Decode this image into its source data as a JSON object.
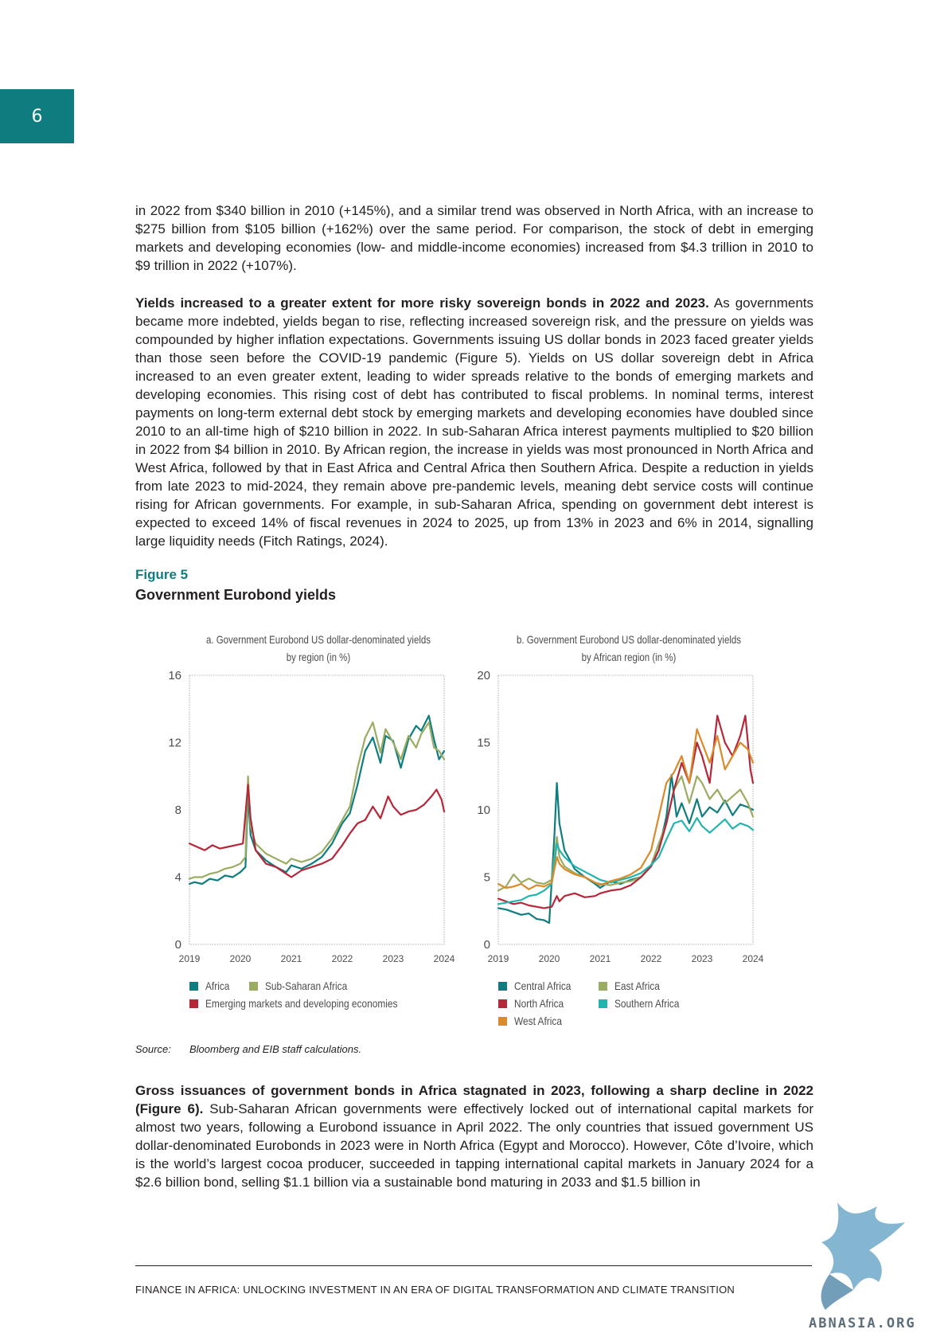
{
  "page": {
    "number": "6",
    "footer": "FINANCE IN AFRICA: UNLOCKING INVESTMENT IN AN ERA OF DIGITAL TRANSFORMATION AND CLIMATE TRANSITION",
    "watermark": "ABNASIA.ORG"
  },
  "text": {
    "para1": "in 2022 from $340 billion in 2010 (+145%), and a similar trend was observed in North Africa, with an increase to $275 billion from $105 billion (+162%) over the same period. For comparison, the stock of debt in emerging markets and developing economies (low- and middle-income economies) increased from $4.3 trillion in 2010 to $9 trillion in 2022 (+107%).",
    "para2_bold": "Yields increased to a greater extent for more risky sovereign bonds in 2022 and 2023.",
    "para2": " As governments became more indebted, yields began to rise, reflecting increased sovereign risk, and the pressure on yields was compounded by higher inflation expectations. Governments issuing US dollar bonds in 2023 faced greater yields than those seen before the COVID-19 pandemic (Figure 5). Yields on US dollar sovereign debt in Africa increased to an even greater extent, leading to wider spreads relative to the bonds of emerging markets and developing economies. This rising cost of debt has contributed to fiscal problems. In nominal terms, interest payments on long-term external debt stock by emerging markets and developing economies have doubled since 2010 to an all-time high of $210 billion in 2022. In sub-Saharan Africa interest payments multiplied to $20 billion in 2022 from $4 billion in 2010. By African region, the increase in yields was most pronounced in North Africa and West Africa, followed by that in East Africa and Central Africa then Southern Africa. Despite a reduction in yields from late 2023 to mid-2024, they remain above pre-pandemic levels, meaning debt service costs will continue rising for African governments. For example, in sub-Saharan Africa, spending on government debt interest is expected to exceed 14% of fiscal revenues in 2024 to 2025, up from 13% in 2023 and 6% in 2014, signalling large liquidity needs (Fitch Ratings, 2024).",
    "para3_bold": "Gross issuances of government bonds in Africa stagnated in 2023, following a sharp decline in 2022 (Figure 6).",
    "para3": " Sub-Saharan African governments were effectively locked out of international capital markets for almost two years, following a Eurobond issuance in April 2022. The only countries that issued government US dollar-denominated Eurobonds in 2023 were in North Africa (Egypt and Morocco). However, Côte d’Ivoire, which is the world’s largest cocoa producer, succeeded in tapping international capital markets in January 2024 for a $2.6 billion bond, selling $1.1 billion via a sustainable bond maturing in 2033 and $1.5 billion in"
  },
  "figure": {
    "label": "Figure 5",
    "title": "Government Eurobond yields",
    "source_label": "Source:",
    "source_text": "Bloomberg and EIB staff calculations."
  },
  "chart_data": [
    {
      "type": "line",
      "title": "a. Government Eurobond US dollar-denominated yields by region (in %)",
      "title_line1": "a. Government Eurobond US dollar-denominated yields",
      "title_line2": "by region (in %)",
      "x_ticks": [
        "2019",
        "2020",
        "2021",
        "2022",
        "2023",
        "2024"
      ],
      "y_ticks": [
        "0",
        "4",
        "8",
        "12",
        "16"
      ],
      "xlim": [
        2019,
        2024
      ],
      "ylim": [
        0,
        16
      ],
      "grid": false,
      "legend_position": "bottom",
      "series": [
        {
          "name": "Africa",
          "color": "#0f7d80",
          "x": [
            2019.0,
            2019.1,
            2019.25,
            2019.4,
            2019.55,
            2019.7,
            2019.85,
            2020.0,
            2020.1,
            2020.15,
            2020.2,
            2020.3,
            2020.5,
            2020.7,
            2020.9,
            2021.0,
            2021.2,
            2021.4,
            2021.6,
            2021.8,
            2022.0,
            2022.15,
            2022.3,
            2022.45,
            2022.6,
            2022.75,
            2022.85,
            2023.0,
            2023.15,
            2023.3,
            2023.45,
            2023.55,
            2023.7,
            2023.8,
            2023.9,
            2024.0
          ],
          "y": [
            3.6,
            3.7,
            3.6,
            3.9,
            3.8,
            4.1,
            4.0,
            4.3,
            4.6,
            9.0,
            6.5,
            5.6,
            5.0,
            4.6,
            4.3,
            4.7,
            4.5,
            4.8,
            5.2,
            6.0,
            7.2,
            7.8,
            9.5,
            11.5,
            12.3,
            10.8,
            12.4,
            12.1,
            10.5,
            12.2,
            13.0,
            12.7,
            13.6,
            12.2,
            11.0,
            11.5
          ]
        },
        {
          "name": "Sub-Saharan Africa",
          "color": "#9aac62",
          "x": [
            2019.0,
            2019.1,
            2019.25,
            2019.4,
            2019.55,
            2019.7,
            2019.85,
            2020.0,
            2020.1,
            2020.15,
            2020.2,
            2020.3,
            2020.5,
            2020.7,
            2020.9,
            2021.0,
            2021.2,
            2021.4,
            2021.6,
            2021.8,
            2022.0,
            2022.15,
            2022.3,
            2022.45,
            2022.6,
            2022.75,
            2022.85,
            2023.0,
            2023.15,
            2023.3,
            2023.45,
            2023.55,
            2023.7,
            2023.8,
            2023.9,
            2024.0
          ],
          "y": [
            3.9,
            4.0,
            4.0,
            4.2,
            4.3,
            4.5,
            4.6,
            4.8,
            5.2,
            10.0,
            7.0,
            6.0,
            5.4,
            5.1,
            4.8,
            5.1,
            4.9,
            5.1,
            5.5,
            6.3,
            7.4,
            8.2,
            10.5,
            12.3,
            13.2,
            11.4,
            12.8,
            12.0,
            11.0,
            12.4,
            11.7,
            12.5,
            13.2,
            11.7,
            11.5,
            11.0
          ]
        },
        {
          "name": "Emerging markets and developing economies",
          "color": "#b5283a",
          "x": [
            2019.0,
            2019.15,
            2019.3,
            2019.45,
            2019.6,
            2019.75,
            2019.9,
            2020.05,
            2020.15,
            2020.2,
            2020.3,
            2020.5,
            2020.7,
            2020.9,
            2021.0,
            2021.2,
            2021.4,
            2021.6,
            2021.8,
            2022.0,
            2022.15,
            2022.3,
            2022.45,
            2022.6,
            2022.75,
            2022.9,
            2023.0,
            2023.15,
            2023.3,
            2023.45,
            2023.6,
            2023.75,
            2023.85,
            2023.95,
            2024.0
          ],
          "y": [
            6.0,
            5.8,
            5.6,
            5.9,
            5.7,
            5.8,
            5.9,
            6.0,
            9.5,
            7.5,
            5.6,
            4.8,
            4.6,
            4.2,
            4.0,
            4.4,
            4.6,
            4.8,
            5.1,
            5.9,
            6.6,
            7.2,
            7.4,
            8.2,
            7.5,
            8.8,
            8.2,
            7.7,
            7.9,
            8.0,
            8.3,
            8.8,
            9.2,
            8.6,
            7.9
          ]
        }
      ]
    },
    {
      "type": "line",
      "title": "b. Government Eurobond US dollar-denominated yields by African region (in %)",
      "title_line1": "b. Government Eurobond US dollar-denominated yields",
      "title_line2": "by African region (in %)",
      "x_ticks": [
        "2019",
        "2020",
        "2021",
        "2022",
        "2023",
        "2024"
      ],
      "y_ticks": [
        "0",
        "5",
        "10",
        "15",
        "20"
      ],
      "xlim": [
        2019,
        2024
      ],
      "ylim": [
        0,
        20
      ],
      "grid": false,
      "legend_position": "bottom",
      "series": [
        {
          "name": "Central Africa",
          "color": "#0f7d80",
          "x": [
            2019.0,
            2019.15,
            2019.3,
            2019.45,
            2019.6,
            2019.75,
            2019.9,
            2020.0,
            2020.1,
            2020.15,
            2020.2,
            2020.3,
            2020.5,
            2020.7,
            2020.9,
            2021.0,
            2021.2,
            2021.4,
            2021.6,
            2021.8,
            2022.0,
            2022.15,
            2022.3,
            2022.4,
            2022.5,
            2022.6,
            2022.75,
            2022.9,
            2023.0,
            2023.15,
            2023.3,
            2023.45,
            2023.6,
            2023.75,
            2023.9,
            2024.0
          ],
          "y": [
            2.7,
            2.6,
            2.4,
            2.2,
            2.3,
            1.9,
            1.8,
            1.6,
            8.0,
            12.0,
            9.0,
            7.0,
            5.6,
            5.0,
            4.5,
            4.2,
            4.7,
            4.5,
            4.8,
            5.0,
            5.8,
            7.0,
            9.5,
            12.6,
            9.5,
            10.5,
            9.0,
            10.8,
            9.5,
            10.2,
            9.8,
            10.7,
            9.6,
            10.4,
            10.2,
            10.0
          ]
        },
        {
          "name": "East Africa",
          "color": "#9aac62",
          "x": [
            2019.0,
            2019.15,
            2019.3,
            2019.45,
            2019.6,
            2019.75,
            2019.9,
            2020.05,
            2020.15,
            2020.2,
            2020.3,
            2020.5,
            2020.7,
            2020.9,
            2021.0,
            2021.2,
            2021.4,
            2021.6,
            2021.8,
            2022.0,
            2022.15,
            2022.3,
            2022.45,
            2022.6,
            2022.75,
            2022.9,
            2023.0,
            2023.15,
            2023.3,
            2023.45,
            2023.6,
            2023.75,
            2023.9,
            2024.0
          ],
          "y": [
            4.0,
            4.3,
            5.2,
            4.6,
            4.9,
            4.6,
            4.5,
            4.8,
            8.0,
            6.5,
            5.8,
            5.3,
            5.0,
            4.6,
            4.5,
            4.4,
            4.6,
            4.7,
            5.0,
            5.9,
            7.5,
            9.0,
            11.5,
            12.5,
            10.5,
            12.5,
            12.0,
            10.8,
            11.5,
            10.5,
            11.0,
            11.5,
            10.5,
            9.5
          ]
        },
        {
          "name": "North Africa",
          "color": "#b5283a",
          "x": [
            2019.0,
            2019.15,
            2019.3,
            2019.45,
            2019.6,
            2019.75,
            2019.9,
            2020.05,
            2020.15,
            2020.2,
            2020.3,
            2020.5,
            2020.7,
            2020.9,
            2021.0,
            2021.2,
            2021.4,
            2021.6,
            2021.8,
            2022.0,
            2022.15,
            2022.3,
            2022.45,
            2022.6,
            2022.75,
            2022.9,
            2023.0,
            2023.15,
            2023.3,
            2023.45,
            2023.6,
            2023.75,
            2023.85,
            2023.95,
            2024.0
          ],
          "y": [
            3.4,
            3.2,
            3.0,
            3.1,
            2.9,
            2.8,
            2.7,
            2.8,
            3.6,
            3.2,
            3.6,
            3.8,
            3.5,
            3.6,
            3.8,
            4.0,
            4.1,
            4.4,
            5.0,
            5.8,
            7.0,
            9.0,
            11.5,
            13.5,
            12.0,
            15.0,
            14.0,
            12.0,
            17.0,
            15.0,
            14.0,
            15.5,
            17.0,
            13.0,
            12.0
          ]
        },
        {
          "name": "Southern Africa",
          "color": "#22b5b0",
          "x": [
            2019.0,
            2019.15,
            2019.3,
            2019.45,
            2019.6,
            2019.75,
            2019.9,
            2020.05,
            2020.15,
            2020.2,
            2020.3,
            2020.5,
            2020.7,
            2020.9,
            2021.0,
            2021.2,
            2021.4,
            2021.6,
            2021.8,
            2022.0,
            2022.15,
            2022.3,
            2022.45,
            2022.6,
            2022.75,
            2022.9,
            2023.0,
            2023.15,
            2023.3,
            2023.45,
            2023.6,
            2023.75,
            2023.9,
            2024.0
          ],
          "y": [
            3.0,
            3.1,
            3.2,
            3.3,
            3.6,
            3.7,
            4.0,
            4.5,
            7.5,
            7.0,
            6.5,
            5.8,
            5.4,
            5.0,
            4.8,
            4.6,
            4.8,
            5.0,
            5.3,
            5.9,
            6.5,
            7.8,
            9.0,
            9.2,
            8.4,
            9.4,
            8.8,
            8.3,
            8.8,
            9.3,
            8.6,
            9.0,
            8.8,
            8.5
          ]
        },
        {
          "name": "West Africa",
          "color": "#d98a2b",
          "x": [
            2019.0,
            2019.15,
            2019.3,
            2019.45,
            2019.6,
            2019.75,
            2019.9,
            2020.05,
            2020.15,
            2020.2,
            2020.3,
            2020.5,
            2020.7,
            2020.9,
            2021.0,
            2021.2,
            2021.4,
            2021.6,
            2021.8,
            2022.0,
            2022.15,
            2022.3,
            2022.45,
            2022.6,
            2022.75,
            2022.9,
            2023.0,
            2023.15,
            2023.3,
            2023.45,
            2023.6,
            2023.75,
            2023.9,
            2024.0
          ],
          "y": [
            4.5,
            4.2,
            4.3,
            4.5,
            4.1,
            4.4,
            4.3,
            4.6,
            6.5,
            6.0,
            5.6,
            5.2,
            5.0,
            4.6,
            4.4,
            4.7,
            4.9,
            5.2,
            5.7,
            7.0,
            9.5,
            12.0,
            12.8,
            14.0,
            12.0,
            16.0,
            15.0,
            13.5,
            15.5,
            13.0,
            14.0,
            15.0,
            14.5,
            13.5
          ]
        }
      ]
    }
  ]
}
